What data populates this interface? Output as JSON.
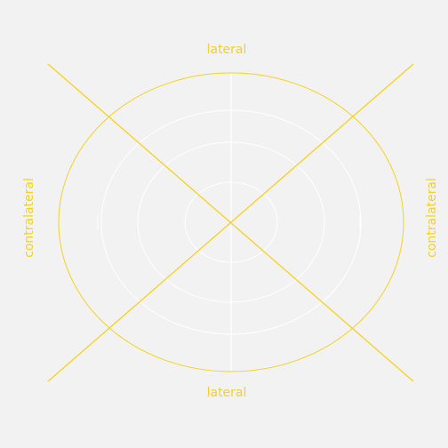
{
  "colors": {
    "background": "#f2f2f2",
    "accent": "#f5d21f",
    "grid": "#ffffff"
  },
  "labels": {
    "top": "lateral",
    "bottom": "lateral",
    "left": "contralateral",
    "right": "contralateral"
  }
}
